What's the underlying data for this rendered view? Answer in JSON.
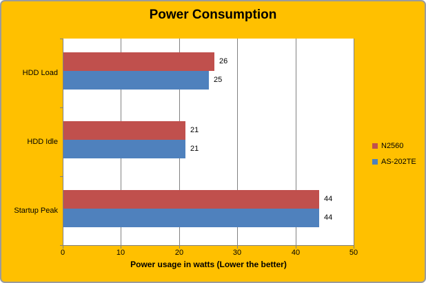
{
  "chart_data": {
    "type": "bar",
    "orientation": "horizontal",
    "title": "Power Consumption",
    "categories": [
      "HDD Load",
      "HDD Idle",
      "Startup Peak"
    ],
    "series": [
      {
        "name": "N2560",
        "color": "#C0504D",
        "values": [
          26,
          21,
          44
        ]
      },
      {
        "name": "AS-202TE",
        "color": "#4F81BD",
        "values": [
          25,
          21,
          44
        ]
      }
    ],
    "data_labels": [
      [
        26,
        21,
        44
      ],
      [
        25,
        21,
        44
      ]
    ],
    "xlabel": "Power usage in watts (Lower the better)",
    "ylabel": "",
    "xlim": [
      0,
      50
    ],
    "xticks": [
      "0",
      "10",
      "20",
      "30",
      "40",
      "50"
    ],
    "grid": true,
    "legend_position": "right"
  },
  "colors": {
    "background": "#FFC000",
    "plot_background": "#FFFFFF",
    "axis": "#808080",
    "gridline": "#808080",
    "text": "#000000",
    "border": "#9B9B9B"
  }
}
